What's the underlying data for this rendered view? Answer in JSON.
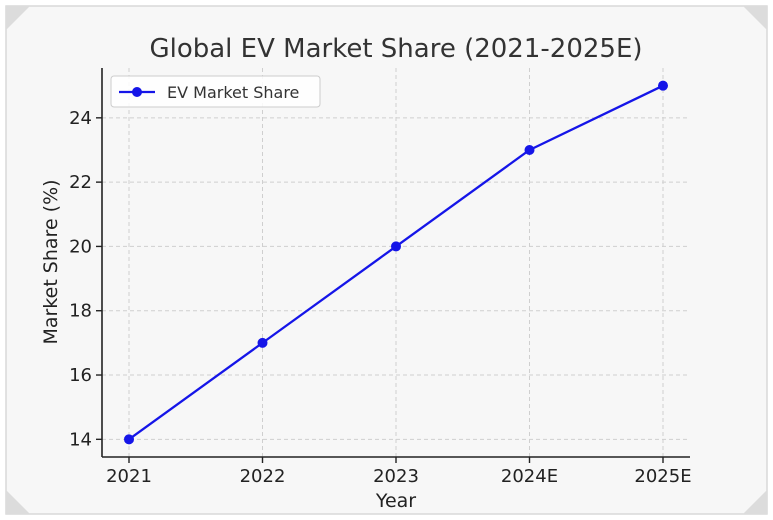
{
  "chart_data": {
    "type": "line",
    "title": "Global EV Market Share (2021-2025E)",
    "xlabel": "Year",
    "ylabel": "Market Share (%)",
    "categories": [
      "2021",
      "2022",
      "2023",
      "2024E",
      "2025E"
    ],
    "series": [
      {
        "name": "EV Market Share",
        "values": [
          14,
          17,
          20,
          23,
          25
        ],
        "color": "#1515e8",
        "marker": "circle"
      }
    ],
    "yticks": [
      "14",
      "16",
      "18",
      "20",
      "22",
      "24"
    ],
    "ylim": [
      13.45,
      25.55
    ],
    "grid": true,
    "legend_position": "upper-left"
  },
  "colors": {
    "background": "#f7f7f7",
    "frame_border": "#d9d9d9",
    "grid": "#cfcfcf",
    "axis": "#222222"
  }
}
